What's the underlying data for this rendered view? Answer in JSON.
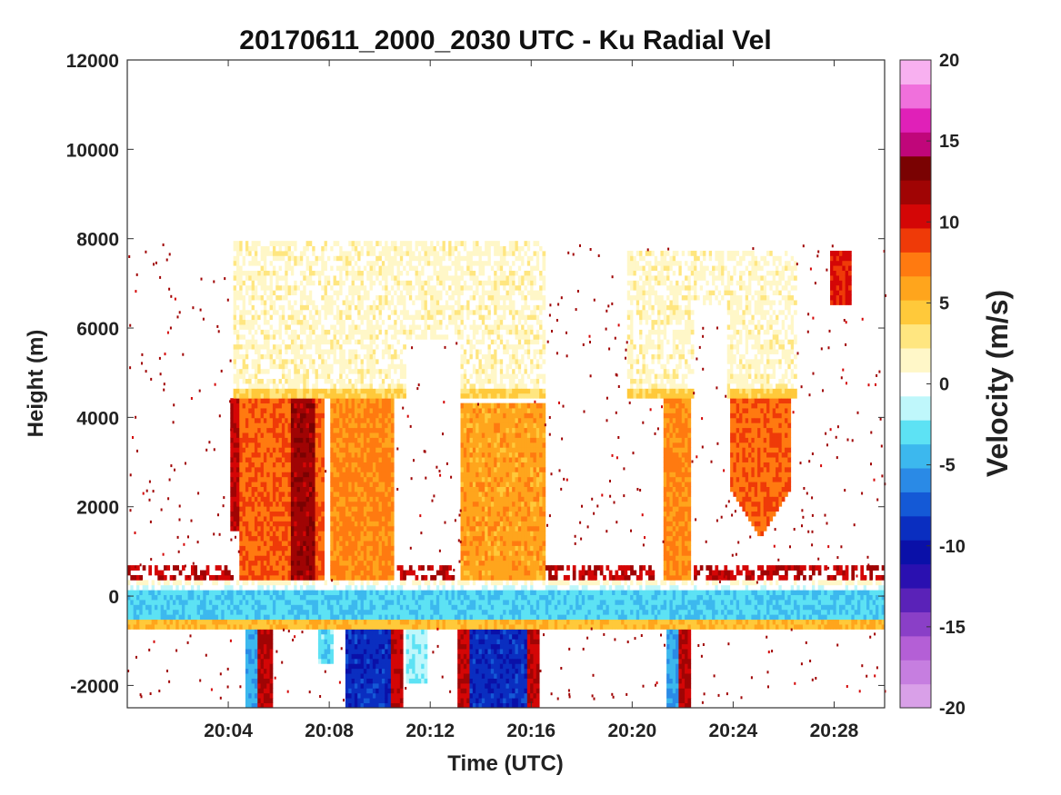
{
  "chart_data": {
    "type": "heatmap",
    "title": "20170611_2000_2030 UTC - Ku Radial Vel",
    "xlabel": "Time (UTC)",
    "ylabel": "Height (m)",
    "x_range_minutes": [
      0,
      30
    ],
    "ylim": [
      -2500,
      12000
    ],
    "x_ticks": [
      {
        "minute": 4,
        "label": "20:04"
      },
      {
        "minute": 8,
        "label": "20:08"
      },
      {
        "minute": 12,
        "label": "20:12"
      },
      {
        "minute": 16,
        "label": "20:16"
      },
      {
        "minute": 20,
        "label": "20:20"
      },
      {
        "minute": 24,
        "label": "20:24"
      },
      {
        "minute": 28,
        "label": "20:28"
      }
    ],
    "y_ticks": [
      {
        "value": -2000,
        "label": "-2000"
      },
      {
        "value": 0,
        "label": "0"
      },
      {
        "value": 2000,
        "label": "2000"
      },
      {
        "value": 4000,
        "label": "4000"
      },
      {
        "value": 6000,
        "label": "6000"
      },
      {
        "value": 8000,
        "label": "8000"
      },
      {
        "value": 10000,
        "label": "10000"
      },
      {
        "value": 12000,
        "label": "12000"
      }
    ],
    "colorbar": {
      "label": "Velocity (m/s)",
      "range": [
        -20,
        20
      ],
      "ticks": [
        {
          "value": 20,
          "label": "20"
        },
        {
          "value": 15,
          "label": "15"
        },
        {
          "value": 10,
          "label": "10"
        },
        {
          "value": 5,
          "label": "5"
        },
        {
          "value": 0,
          "label": "0"
        },
        {
          "value": -5,
          "label": "-5"
        },
        {
          "value": -10,
          "label": "-10"
        },
        {
          "value": -15,
          "label": "-15"
        },
        {
          "value": -20,
          "label": "-20"
        }
      ],
      "colors": [
        "#d9a0e8",
        "#c67ee0",
        "#b45fd6",
        "#8a3fc7",
        "#5a22b8",
        "#2a10b0",
        "#0a10a8",
        "#0a2ec0",
        "#1459d6",
        "#2a8ae6",
        "#3cb8ee",
        "#5de2f4",
        "#bff7fb",
        "#ffffff",
        "#fff7c8",
        "#ffe680",
        "#ffc93a",
        "#ffa51c",
        "#ff7a10",
        "#ef3a08",
        "#d40606",
        "#a00404",
        "#7a0202",
        "#c0067a",
        "#e020b8",
        "#f070dc",
        "#f8b0f0"
      ]
    },
    "features": [
      {
        "name": "surface-band",
        "height_m": [
          -500,
          300
        ],
        "velocity_ms": -4
      },
      {
        "name": "ground-clutter-rings",
        "height_m": [
          -600,
          600
        ],
        "velocity_ms": 5
      },
      {
        "name": "rain-column",
        "time_min": [
          4.5,
          10.6
        ],
        "height_m": [
          0,
          4400
        ],
        "velocity_ms": 8
      },
      {
        "name": "rain-column",
        "time_min": [
          13.2,
          16.5
        ],
        "height_m": [
          0,
          4300
        ],
        "velocity_ms": 6
      },
      {
        "name": "rain-column",
        "time_min": [
          21.2,
          22.3
        ],
        "height_m": [
          0,
          4400
        ],
        "velocity_ms": 7
      },
      {
        "name": "rain-column",
        "time_min": [
          23.8,
          26.4
        ],
        "height_m": [
          1300,
          4700
        ],
        "velocity_ms": 8
      },
      {
        "name": "cloud-layer",
        "time_min": [
          4.2,
          16.6
        ],
        "height_m": [
          4400,
          8000
        ],
        "velocity_ms": 2
      },
      {
        "name": "cloud-layer",
        "time_min": [
          19.8,
          26.5
        ],
        "height_m": [
          4400,
          7700
        ],
        "velocity_ms": 2
      },
      {
        "name": "downward-below-surface",
        "time_min": [
          8.5,
          10.5
        ],
        "height_m": [
          -2500,
          -300
        ],
        "velocity_ms": -9
      },
      {
        "name": "downward-below-surface",
        "time_min": [
          13.6,
          15.8
        ],
        "height_m": [
          -2500,
          -300
        ],
        "velocity_ms": -9
      }
    ]
  }
}
